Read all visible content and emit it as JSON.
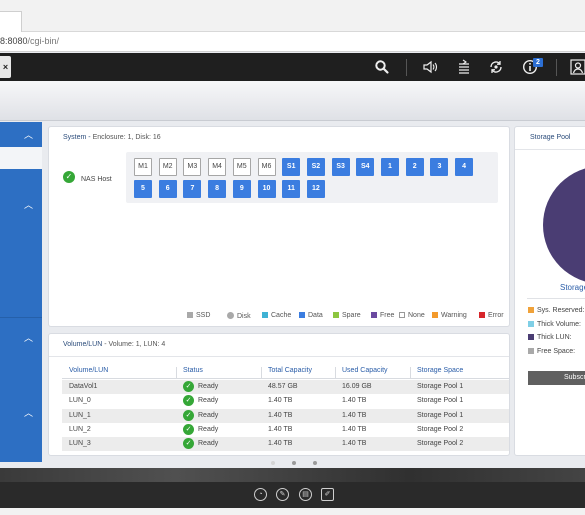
{
  "browser": {
    "url_prefix": "8:8080",
    "url_path": "/cgi-bin/"
  },
  "topbar": {
    "close_label": "×",
    "icons": [
      "search-icon",
      "volume-icon",
      "stack-icon",
      "sync-icon",
      "info-icon",
      "user-icon"
    ],
    "info_badge": "2"
  },
  "system_panel": {
    "title_prefix": "System - ",
    "title_rest": "Enclosure: 1, Disk: 16",
    "host_label": "NAS Host",
    "slots_row1": [
      "M1",
      "M2",
      "M3",
      "M4",
      "M5",
      "M6",
      "S1",
      "S2",
      "S3",
      "S4",
      "1",
      "2",
      "3",
      "4"
    ],
    "slots_row2": [
      "5",
      "6",
      "7",
      "8",
      "9",
      "10",
      "11",
      "12"
    ],
    "legend": [
      {
        "label": "SSD",
        "color": "#a9a9a9"
      },
      {
        "label": "Disk",
        "color": "#a9a9a9"
      },
      {
        "label": "Cache",
        "color": "#3fb2d4"
      },
      {
        "label": "Data",
        "color": "#3b7de0"
      },
      {
        "label": "Spare",
        "color": "#8cc63f"
      },
      {
        "label": "Free",
        "color": "#6b4aa0"
      },
      {
        "label": "None",
        "color": "#ffffff"
      },
      {
        "label": "Warning",
        "color": "#f39a2c"
      },
      {
        "label": "Error",
        "color": "#d7262b"
      }
    ]
  },
  "volume_panel": {
    "title_prefix": "Volume/LUN",
    "title_rest": " - Volume: 1, LUN: 4",
    "columns": [
      "Volume/LUN",
      "Status",
      "Total Capacity",
      "Used Capacity",
      "Storage Space"
    ],
    "rows": [
      {
        "name": "DataVol1",
        "status": "Ready",
        "total": "48.57 GB",
        "used": "16.09 GB",
        "space": "Storage Pool 1"
      },
      {
        "name": "LUN_0",
        "status": "Ready",
        "total": "1.40 TB",
        "used": "1.40 TB",
        "space": "Storage Pool 1"
      },
      {
        "name": "LUN_1",
        "status": "Ready",
        "total": "1.40 TB",
        "used": "1.40 TB",
        "space": "Storage Pool 1"
      },
      {
        "name": "LUN_2",
        "status": "Ready",
        "total": "1.40 TB",
        "used": "1.40 TB",
        "space": "Storage Pool 2"
      },
      {
        "name": "LUN_3",
        "status": "Ready",
        "total": "1.40 TB",
        "used": "1.40 TB",
        "space": "Storage Pool 2"
      }
    ]
  },
  "storage_pool_panel": {
    "title": "Storage Pool",
    "caption": "Storage",
    "legend": [
      {
        "label": "Sys. Reserved:",
        "color": "#f0a23a"
      },
      {
        "label": "Thick Volume:",
        "color": "#7fcfe6"
      },
      {
        "label": "Thick LUN:",
        "color": "#4a3d73"
      },
      {
        "label": "Free Space:",
        "color": "#a9a9a9"
      }
    ],
    "button_label": "Subscr",
    "pie_colors": {
      "thick_lun": "#4a3d73",
      "free": "#a9a9a9"
    }
  },
  "bottom": {
    "icons": [
      "dashboard-icon",
      "tools-icon",
      "film-icon",
      "edit-icon"
    ]
  }
}
